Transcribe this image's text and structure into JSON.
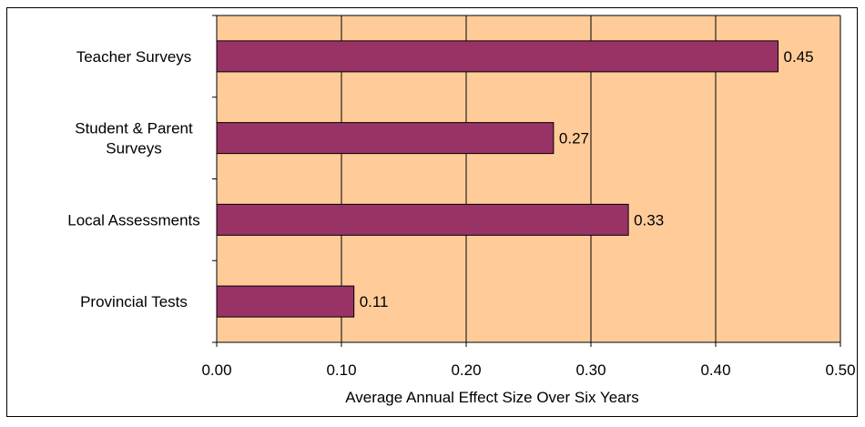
{
  "chart_data": {
    "type": "bar",
    "orientation": "horizontal",
    "categories": [
      "Teacher Surveys",
      "Student & Parent Surveys",
      "Local Assessments",
      "Provincial Tests"
    ],
    "category_lines": [
      [
        "Teacher Surveys"
      ],
      [
        "Student & Parent",
        "Surveys"
      ],
      [
        "Local Assessments"
      ],
      [
        "Provincial Tests"
      ]
    ],
    "values": [
      0.45,
      0.27,
      0.33,
      0.11
    ],
    "data_labels": [
      "0.45",
      "0.27",
      "0.33",
      "0.11"
    ],
    "xlabel": "Average Annual Effect Size Over Six Years",
    "xlim": [
      0,
      0.5
    ],
    "x_ticks": [
      "0.00",
      "0.10",
      "0.20",
      "0.30",
      "0.40",
      "0.50"
    ],
    "grid": "vertical",
    "colors": {
      "bar": "#993366",
      "plot_background": "#FFCC99",
      "grid": "#000000"
    }
  }
}
